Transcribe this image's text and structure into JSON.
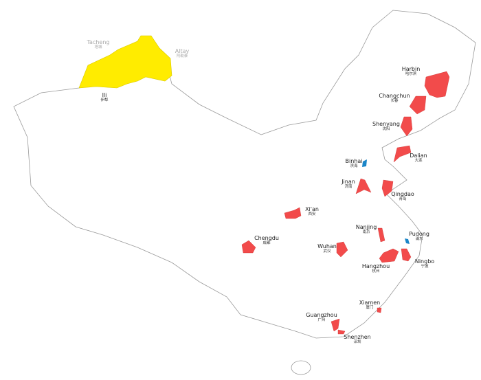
{
  "colors": {
    "new_area_primary": "#f24b4b",
    "new_area_special": "#1b86c8",
    "xinjiang": "#ffec00",
    "border": "#999999"
  },
  "labels": [
    {
      "key": "tacheng",
      "en": "Tacheng",
      "zh": "塔城",
      "style": "grey"
    },
    {
      "key": "altay",
      "en": "Altay",
      "zh": "阿勒泰",
      "style": "grey"
    },
    {
      "key": "ili",
      "en": "Ili",
      "zh": "伊犁"
    },
    {
      "key": "harbin",
      "en": "Harbin",
      "zh": "哈尔滨"
    },
    {
      "key": "changchun",
      "en": "Changchun",
      "zh": "长春"
    },
    {
      "key": "shenyang",
      "en": "Shenyang",
      "zh": "沈阳"
    },
    {
      "key": "dalian",
      "en": "Dalian",
      "zh": "大连"
    },
    {
      "key": "binhai",
      "en": "Binhai",
      "zh": "滨海"
    },
    {
      "key": "jinan",
      "en": "Jinan",
      "zh": "济南"
    },
    {
      "key": "qingdao",
      "en": "Qingdao",
      "zh": "青岛"
    },
    {
      "key": "xian",
      "en": "Xi'an",
      "zh": "西安"
    },
    {
      "key": "chengdu",
      "en": "Chengdu",
      "zh": "成都"
    },
    {
      "key": "nanjing",
      "en": "Nanjing",
      "zh": "南京"
    },
    {
      "key": "wuhan",
      "en": "Wuhan",
      "zh": "武汉"
    },
    {
      "key": "pudong",
      "en": "Pudong",
      "zh": "浦东"
    },
    {
      "key": "hangzhou",
      "en": "Hangzhou",
      "zh": "杭州"
    },
    {
      "key": "ningbo",
      "en": "Ningbo",
      "zh": "宁波"
    },
    {
      "key": "xiamen",
      "en": "Xiamen",
      "zh": "厦门"
    },
    {
      "key": "guangzhou",
      "en": "Guangzhou",
      "zh": "广州"
    },
    {
      "key": "shenzhen",
      "en": "Shenzhen",
      "zh": "深圳"
    }
  ]
}
